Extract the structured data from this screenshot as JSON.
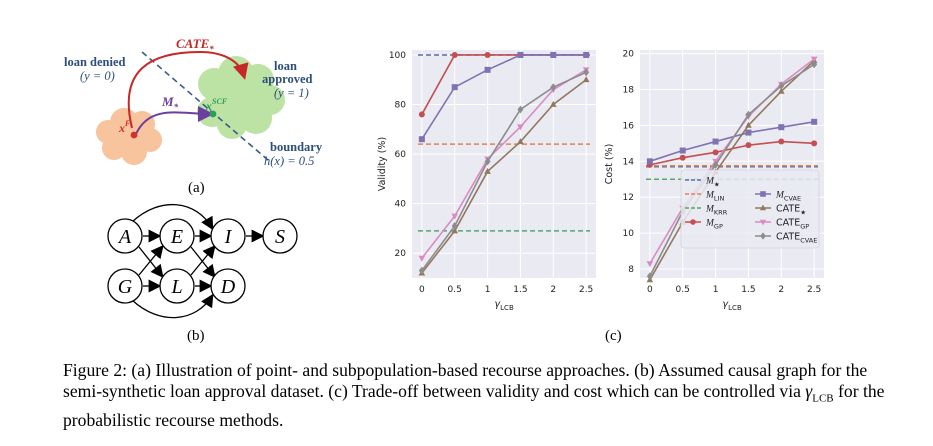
{
  "panel_a": {
    "label": "(a)",
    "loan_denied": "loan denied",
    "y0": "(y = 0)",
    "loan_approved_1": "loan",
    "loan_approved_2": "approved",
    "y1": "(y = 1)",
    "boundary": "boundary",
    "h_eq": "h(x) = 0.5",
    "cate": "CATE",
    "cate_sub": "*",
    "m": "M",
    "m_sub": "*",
    "xF": "x",
    "xF_sup": "F",
    "xSCF": "x",
    "xSCF_sup": "SCF",
    "colors": {
      "denied": "#f7c49d",
      "approved": "#bde3a4",
      "boundary": "#3a5a8c",
      "cate": "#c62828",
      "m": "#6a3fa0",
      "text_blue": "#2d4d7c"
    }
  },
  "panel_b": {
    "label": "(b)",
    "nodes": [
      "A",
      "E",
      "I",
      "S",
      "G",
      "L",
      "D"
    ]
  },
  "panel_c_label": "(c)",
  "chart_data": [
    {
      "type": "line",
      "ylabel": "Validity (%)",
      "xlabel": "γLCB",
      "x": [
        0,
        0.5,
        1,
        1.5,
        2,
        2.5
      ],
      "xticks": [
        "0",
        "0.5",
        "1",
        "1.5",
        "2",
        "2.5"
      ],
      "ylim": [
        10,
        102
      ],
      "yticks": [
        20,
        40,
        60,
        80,
        100
      ],
      "grid": true,
      "hlines": [
        {
          "name": "M★",
          "value": 100,
          "color": "#4c72b0"
        },
        {
          "name": "MLIN",
          "value": 64,
          "color": "#dd8452"
        },
        {
          "name": "MKRR",
          "value": 29,
          "color": "#55a868"
        }
      ],
      "series": [
        {
          "name": "MGP",
          "color": "#c44e52",
          "marker": "circle",
          "values": [
            76,
            100,
            100,
            100,
            100,
            100
          ]
        },
        {
          "name": "MCVAE",
          "color": "#8172b2",
          "marker": "square",
          "values": [
            66,
            87,
            94,
            100,
            100,
            100
          ]
        },
        {
          "name": "CATE★",
          "color": "#937860",
          "marker": "triangle-up",
          "values": [
            12,
            29,
            53,
            65,
            80,
            90
          ]
        },
        {
          "name": "CATEGP",
          "color": "#da8bc3",
          "marker": "triangle-down",
          "values": [
            18,
            35,
            58,
            71,
            86,
            94
          ]
        },
        {
          "name": "CATECVAE",
          "color": "#8c8c8c",
          "marker": "diamond",
          "values": [
            13,
            31,
            57,
            78,
            87,
            93
          ]
        }
      ]
    },
    {
      "type": "line",
      "ylabel": "Cost (%)",
      "xlabel": "γLCB",
      "x": [
        0,
        0.5,
        1,
        1.5,
        2,
        2.5
      ],
      "xticks": [
        "0",
        "0.5",
        "1",
        "1.5",
        "2",
        "2.5"
      ],
      "ylim": [
        7.5,
        20.2
      ],
      "yticks": [
        8,
        10,
        12,
        14,
        16,
        18,
        20
      ],
      "grid": true,
      "legend_position": "bottom-right",
      "hlines": [
        {
          "name": "M★",
          "value": 13.7,
          "color": "#4c72b0"
        },
        {
          "name": "MLIN",
          "value": 13.75,
          "color": "#dd8452"
        },
        {
          "name": "MKRR",
          "value": 13.0,
          "color": "#55a868"
        }
      ],
      "series": [
        {
          "name": "MGP",
          "color": "#c44e52",
          "marker": "circle",
          "values": [
            13.8,
            14.2,
            14.5,
            14.9,
            15.1,
            15.0
          ]
        },
        {
          "name": "MCVAE",
          "color": "#8172b2",
          "marker": "square",
          "values": [
            14.0,
            14.6,
            15.1,
            15.6,
            15.9,
            16.2
          ]
        },
        {
          "name": "CATE★",
          "color": "#937860",
          "marker": "triangle-up",
          "values": [
            7.4,
            10.6,
            13.4,
            16.0,
            17.9,
            19.6
          ]
        },
        {
          "name": "CATEGP",
          "color": "#da8bc3",
          "marker": "triangle-down",
          "values": [
            8.3,
            11.4,
            14.0,
            16.5,
            18.3,
            19.7
          ]
        },
        {
          "name": "CATECVAE",
          "color": "#8c8c8c",
          "marker": "diamond",
          "values": [
            7.6,
            11.2,
            13.8,
            16.6,
            18.2,
            19.4
          ]
        }
      ],
      "legend": [
        {
          "base": "M",
          "sub": "★",
          "cal": true,
          "color": "#4c72b0",
          "style": "dash"
        },
        {
          "base": "M",
          "sub": "LIN",
          "cal": true,
          "color": "#dd8452",
          "style": "dash"
        },
        {
          "base": "M",
          "sub": "KRR",
          "cal": true,
          "color": "#55a868",
          "style": "dash"
        },
        {
          "base": "M",
          "sub": "GP",
          "cal": true,
          "color": "#c44e52",
          "style": "circle"
        },
        {
          "base": "M",
          "sub": "CVAE",
          "cal": true,
          "color": "#8172b2",
          "style": "square"
        },
        {
          "base": "CATE",
          "sub": "★",
          "cal": false,
          "color": "#937860",
          "style": "triangle-up"
        },
        {
          "base": "CATE",
          "sub": "GP",
          "cal": false,
          "color": "#da8bc3",
          "style": "triangle-down"
        },
        {
          "base": "CATE",
          "sub": "CVAE",
          "cal": false,
          "color": "#8c8c8c",
          "style": "diamond"
        }
      ]
    }
  ],
  "caption": {
    "p1": "Figure 2: (a) Illustration of point- and subpopulation-based recourse approaches. (b) Assumed causal graph for the semi-synthetic loan approval dataset. (c) Trade-off between validity and cost which can be controlled via ",
    "gamma": "γ",
    "gamma_sub": "LCB",
    "p2": " for the probabilistic recourse methods."
  }
}
